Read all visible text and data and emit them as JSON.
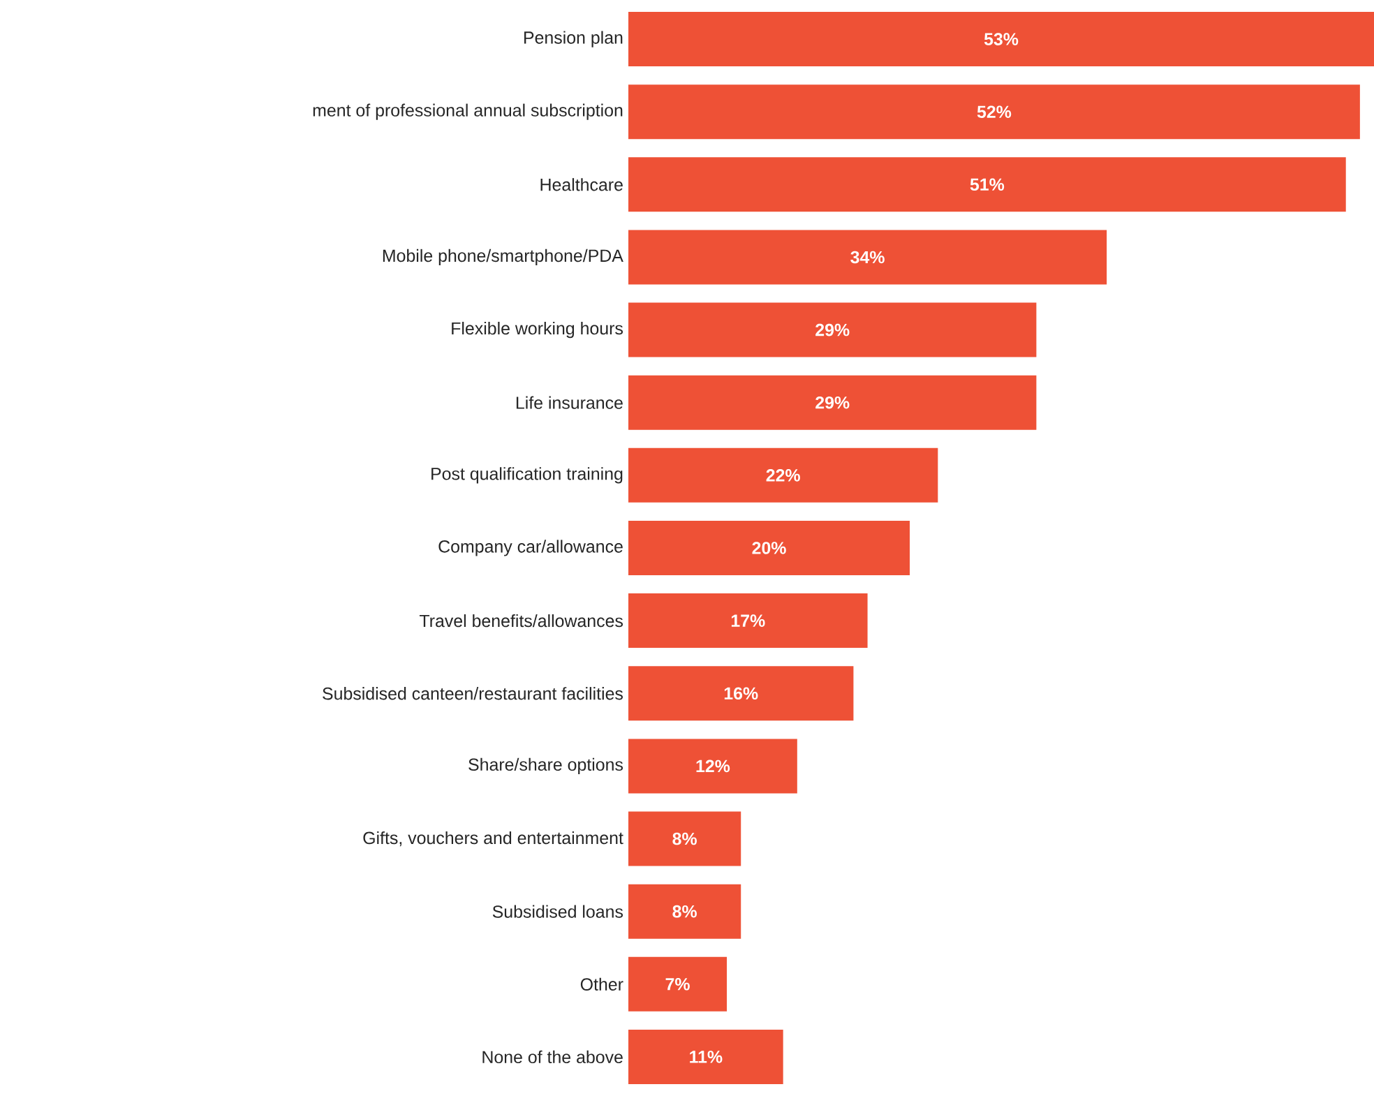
{
  "chart_data": {
    "type": "bar",
    "orientation": "horizontal",
    "xlim": [
      0,
      53
    ],
    "categories": [
      "Pension plan",
      "ment of professional annual subscription",
      "Healthcare",
      "Mobile phone/smartphone/PDA",
      "Flexible working hours",
      "Life insurance",
      "Post qualification training",
      "Company car/allowance",
      "Travel benefits/allowances",
      "Subsidised canteen/restaurant facilities",
      "Share/share options",
      "Gifts, vouchers and entertainment",
      "Subsidised loans",
      "Other",
      "None of the above"
    ],
    "values": [
      53,
      52,
      51,
      34,
      29,
      29,
      22,
      20,
      17,
      16,
      12,
      8,
      8,
      7,
      11
    ],
    "value_labels": [
      "53%",
      "52%",
      "51%",
      "34%",
      "29%",
      "29%",
      "22%",
      "20%",
      "17%",
      "16%",
      "12%",
      "8%",
      "8%",
      "7%",
      "11%"
    ],
    "color": "#ee5136"
  }
}
